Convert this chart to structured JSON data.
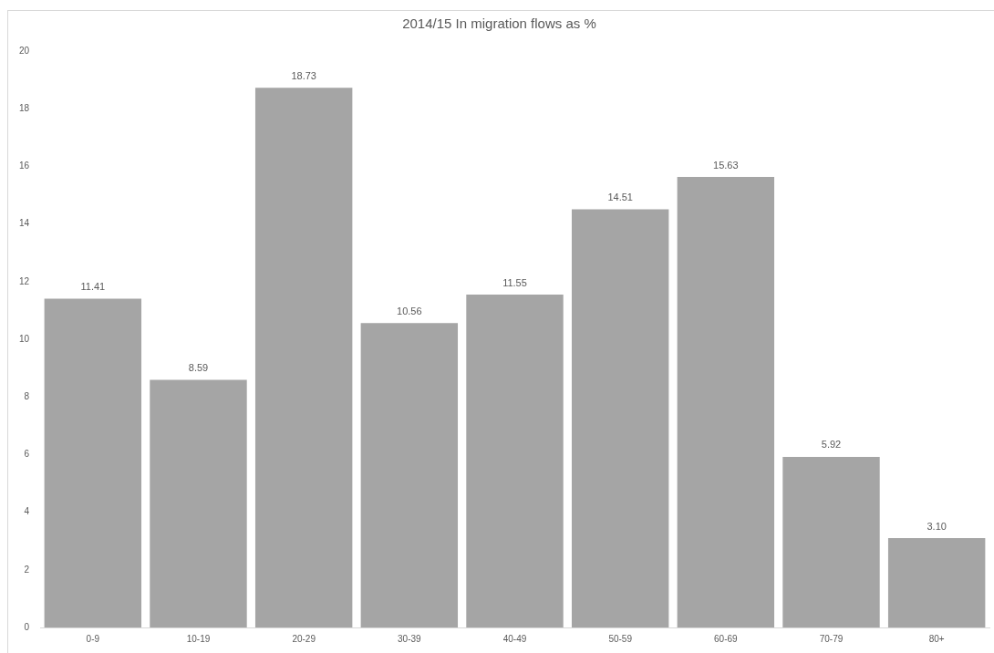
{
  "chart_data": {
    "type": "bar",
    "title": "2014/15 In migration flows as %",
    "categories": [
      "0-9",
      "10-19",
      "20-29",
      "30-39",
      "40-49",
      "50-59",
      "60-69",
      "70-79",
      "80+"
    ],
    "values": [
      11.41,
      8.59,
      18.73,
      10.56,
      11.55,
      14.51,
      15.63,
      5.92,
      3.1
    ],
    "value_labels": [
      "11.41",
      "8.59",
      "18.73",
      "10.56",
      "11.55",
      "14.51",
      "15.63",
      "5.92",
      "3.10"
    ],
    "color": "#a5a5a5",
    "ylim": [
      0,
      20
    ],
    "yticks": [
      0,
      2,
      4,
      6,
      8,
      10,
      12,
      14,
      16,
      18,
      20
    ],
    "grid": false,
    "legend": false
  }
}
